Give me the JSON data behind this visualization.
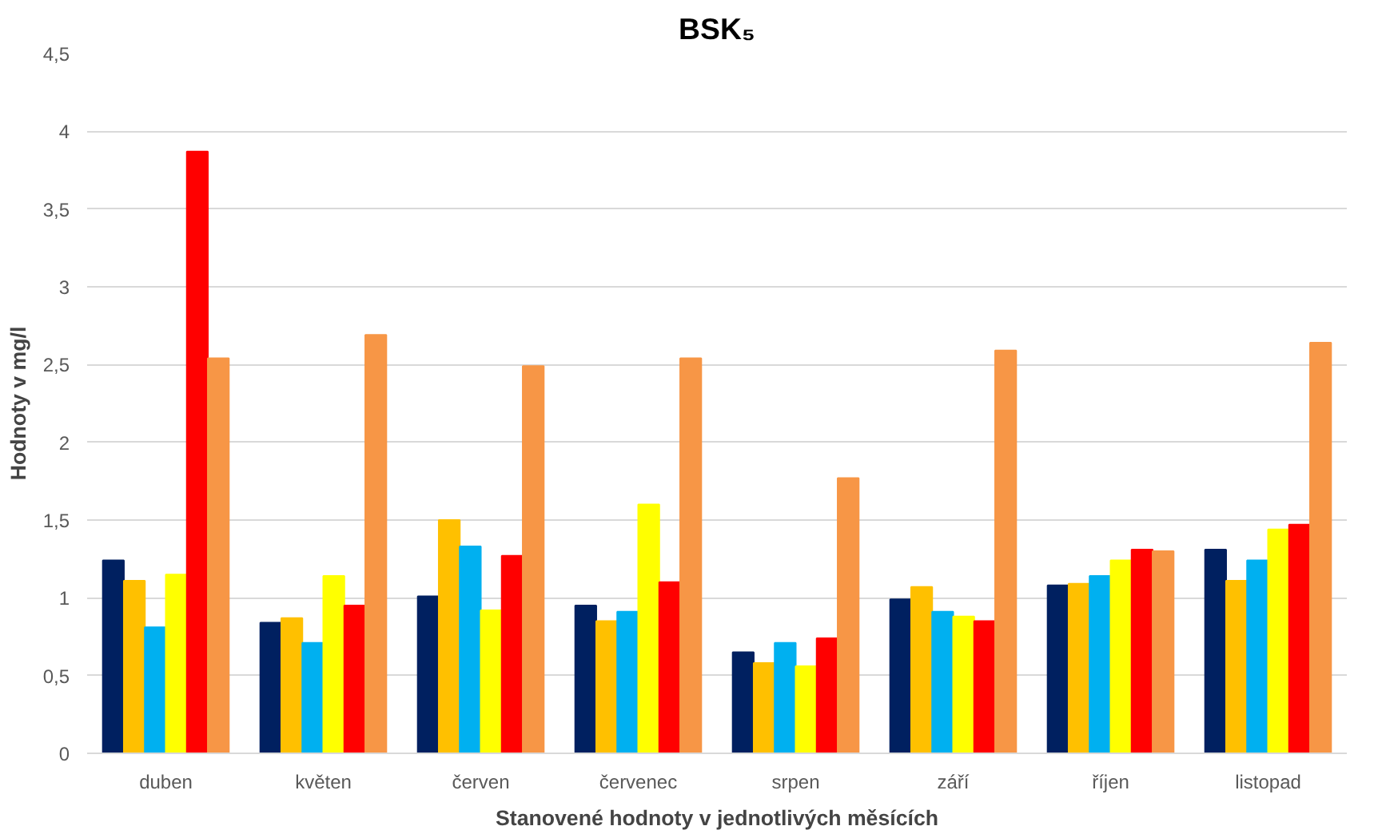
{
  "chart_data": {
    "type": "bar",
    "title": "BSK₅",
    "xlabel": "Stanovené hodnoty v jednotlivých měsících",
    "ylabel": "Hodnoty v mg/l",
    "categories": [
      "duben",
      "květen",
      "červen",
      "červenec",
      "srpen",
      "září",
      "říjen",
      "listopad"
    ],
    "series": [
      {
        "color": "#002060",
        "values": [
          1.24,
          0.84,
          1.01,
          0.95,
          0.65,
          0.99,
          1.08,
          1.31
        ]
      },
      {
        "color": "#ffc000",
        "values": [
          1.11,
          0.87,
          1.5,
          0.85,
          0.58,
          1.07,
          1.09,
          1.11
        ]
      },
      {
        "color": "#00b0f0",
        "values": [
          0.81,
          0.71,
          1.33,
          0.91,
          0.71,
          0.91,
          1.14,
          1.24
        ]
      },
      {
        "color": "#ffff00",
        "values": [
          1.15,
          1.14,
          0.92,
          1.6,
          0.56,
          0.88,
          1.24,
          1.44
        ]
      },
      {
        "color": "#ff0000",
        "values": [
          3.87,
          0.95,
          1.27,
          1.1,
          0.74,
          0.85,
          1.31,
          1.47
        ]
      },
      {
        "color": "#f79646",
        "values": [
          2.54,
          2.69,
          2.49,
          2.54,
          1.77,
          2.59,
          1.3,
          2.64
        ]
      }
    ],
    "ylim": [
      0,
      4.5
    ],
    "yticks": [
      0,
      {
        "value": 0.5,
        "label": "0,5"
      },
      1,
      {
        "value": 1.5,
        "label": "1,5"
      },
      2,
      {
        "value": 2.5,
        "label": "2,5"
      },
      3,
      {
        "value": 3.5,
        "label": "3,5"
      },
      4,
      {
        "value": 4.5,
        "label": "4,5"
      }
    ],
    "grid": "y"
  }
}
